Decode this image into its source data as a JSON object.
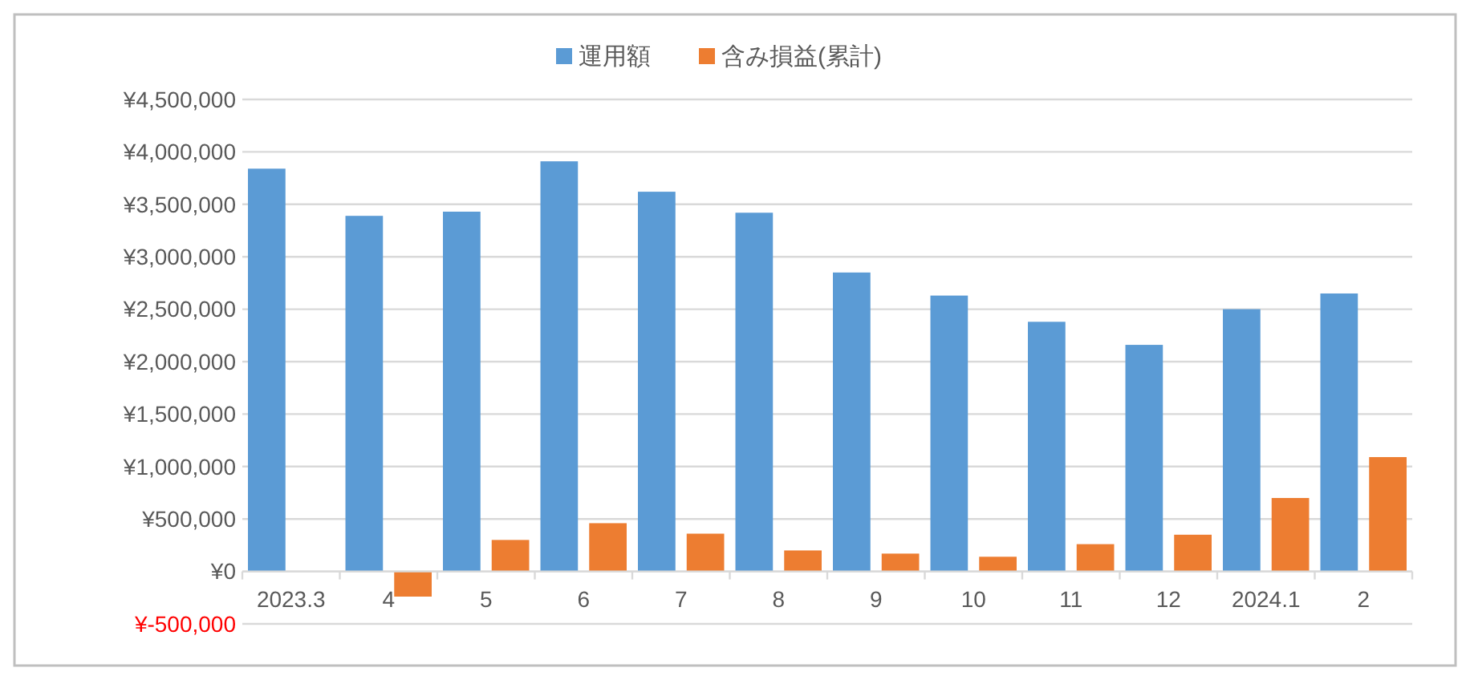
{
  "chart_data": {
    "type": "bar",
    "categories": [
      "2023.3",
      "4",
      "5",
      "6",
      "7",
      "8",
      "9",
      "10",
      "11",
      "12",
      "2024.1",
      "2"
    ],
    "series": [
      {
        "name": "運用額",
        "color": "#5b9bd5",
        "values": [
          3840000,
          3390000,
          3430000,
          3910000,
          3620000,
          3420000,
          2850000,
          2630000,
          2380000,
          2160000,
          2500000,
          2650000
        ]
      },
      {
        "name": "含み損益(累計)",
        "color": "#ed7d31",
        "values": [
          null,
          -240000,
          300000,
          460000,
          360000,
          200000,
          170000,
          140000,
          260000,
          350000,
          700000,
          1090000
        ]
      }
    ],
    "ylim": [
      -500000,
      4500000
    ],
    "yticks": [
      {
        "value": -500000,
        "label": "¥-500,000"
      },
      {
        "value": 0,
        "label": "¥0"
      },
      {
        "value": 500000,
        "label": "¥500,000"
      },
      {
        "value": 1000000,
        "label": "¥1,000,000"
      },
      {
        "value": 1500000,
        "label": "¥1,500,000"
      },
      {
        "value": 2000000,
        "label": "¥2,000,000"
      },
      {
        "value": 2500000,
        "label": "¥2,500,000"
      },
      {
        "value": 3000000,
        "label": "¥3,000,000"
      },
      {
        "value": 3500000,
        "label": "¥3,500,000"
      },
      {
        "value": 4000000,
        "label": "¥4,000,000"
      },
      {
        "value": 4500000,
        "label": "¥4,500,000"
      }
    ],
    "grid": "y",
    "legend": "top"
  }
}
